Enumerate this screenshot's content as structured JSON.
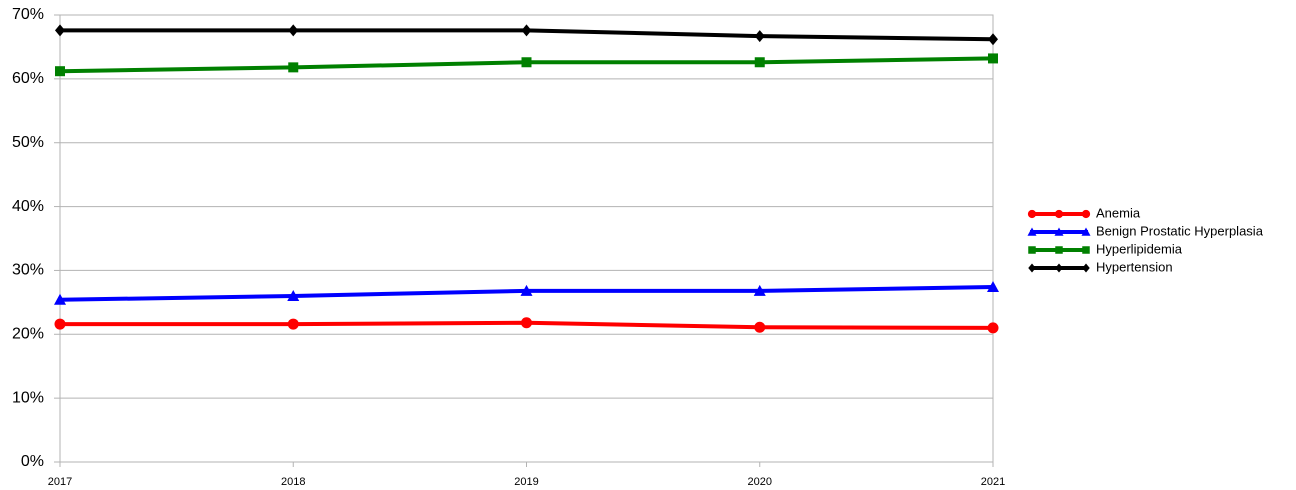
{
  "chart_data": {
    "type": "line",
    "categories": [
      "2017",
      "2018",
      "2019",
      "2020",
      "2021"
    ],
    "series": [
      {
        "name": "Anemia",
        "color": "#ff0000",
        "marker": "circle",
        "values": [
          21.6,
          21.6,
          21.8,
          21.1,
          21.0
        ]
      },
      {
        "name": "Benign Prostatic Hyperplasia",
        "color": "#0000ff",
        "marker": "triangle",
        "values": [
          25.4,
          26.0,
          26.8,
          26.8,
          27.4
        ]
      },
      {
        "name": "Hyperlipidemia",
        "color": "#008000",
        "marker": "square",
        "values": [
          61.2,
          61.8,
          62.6,
          62.6,
          63.2
        ]
      },
      {
        "name": "Hypertension",
        "color": "#000000",
        "marker": "diamond",
        "values": [
          67.6,
          67.6,
          67.6,
          66.7,
          66.2
        ]
      }
    ],
    "ylim": [
      0,
      70
    ],
    "yticks": [
      {
        "value": 0,
        "label": "0%"
      },
      {
        "value": 10,
        "label": "10%"
      },
      {
        "value": 20,
        "label": "20%"
      },
      {
        "value": 30,
        "label": "30%"
      },
      {
        "value": 40,
        "label": "40%"
      },
      {
        "value": 50,
        "label": "50%"
      },
      {
        "value": 60,
        "label": "60%"
      },
      {
        "value": 70,
        "label": "70%"
      }
    ],
    "grid": true,
    "legend": "right"
  }
}
